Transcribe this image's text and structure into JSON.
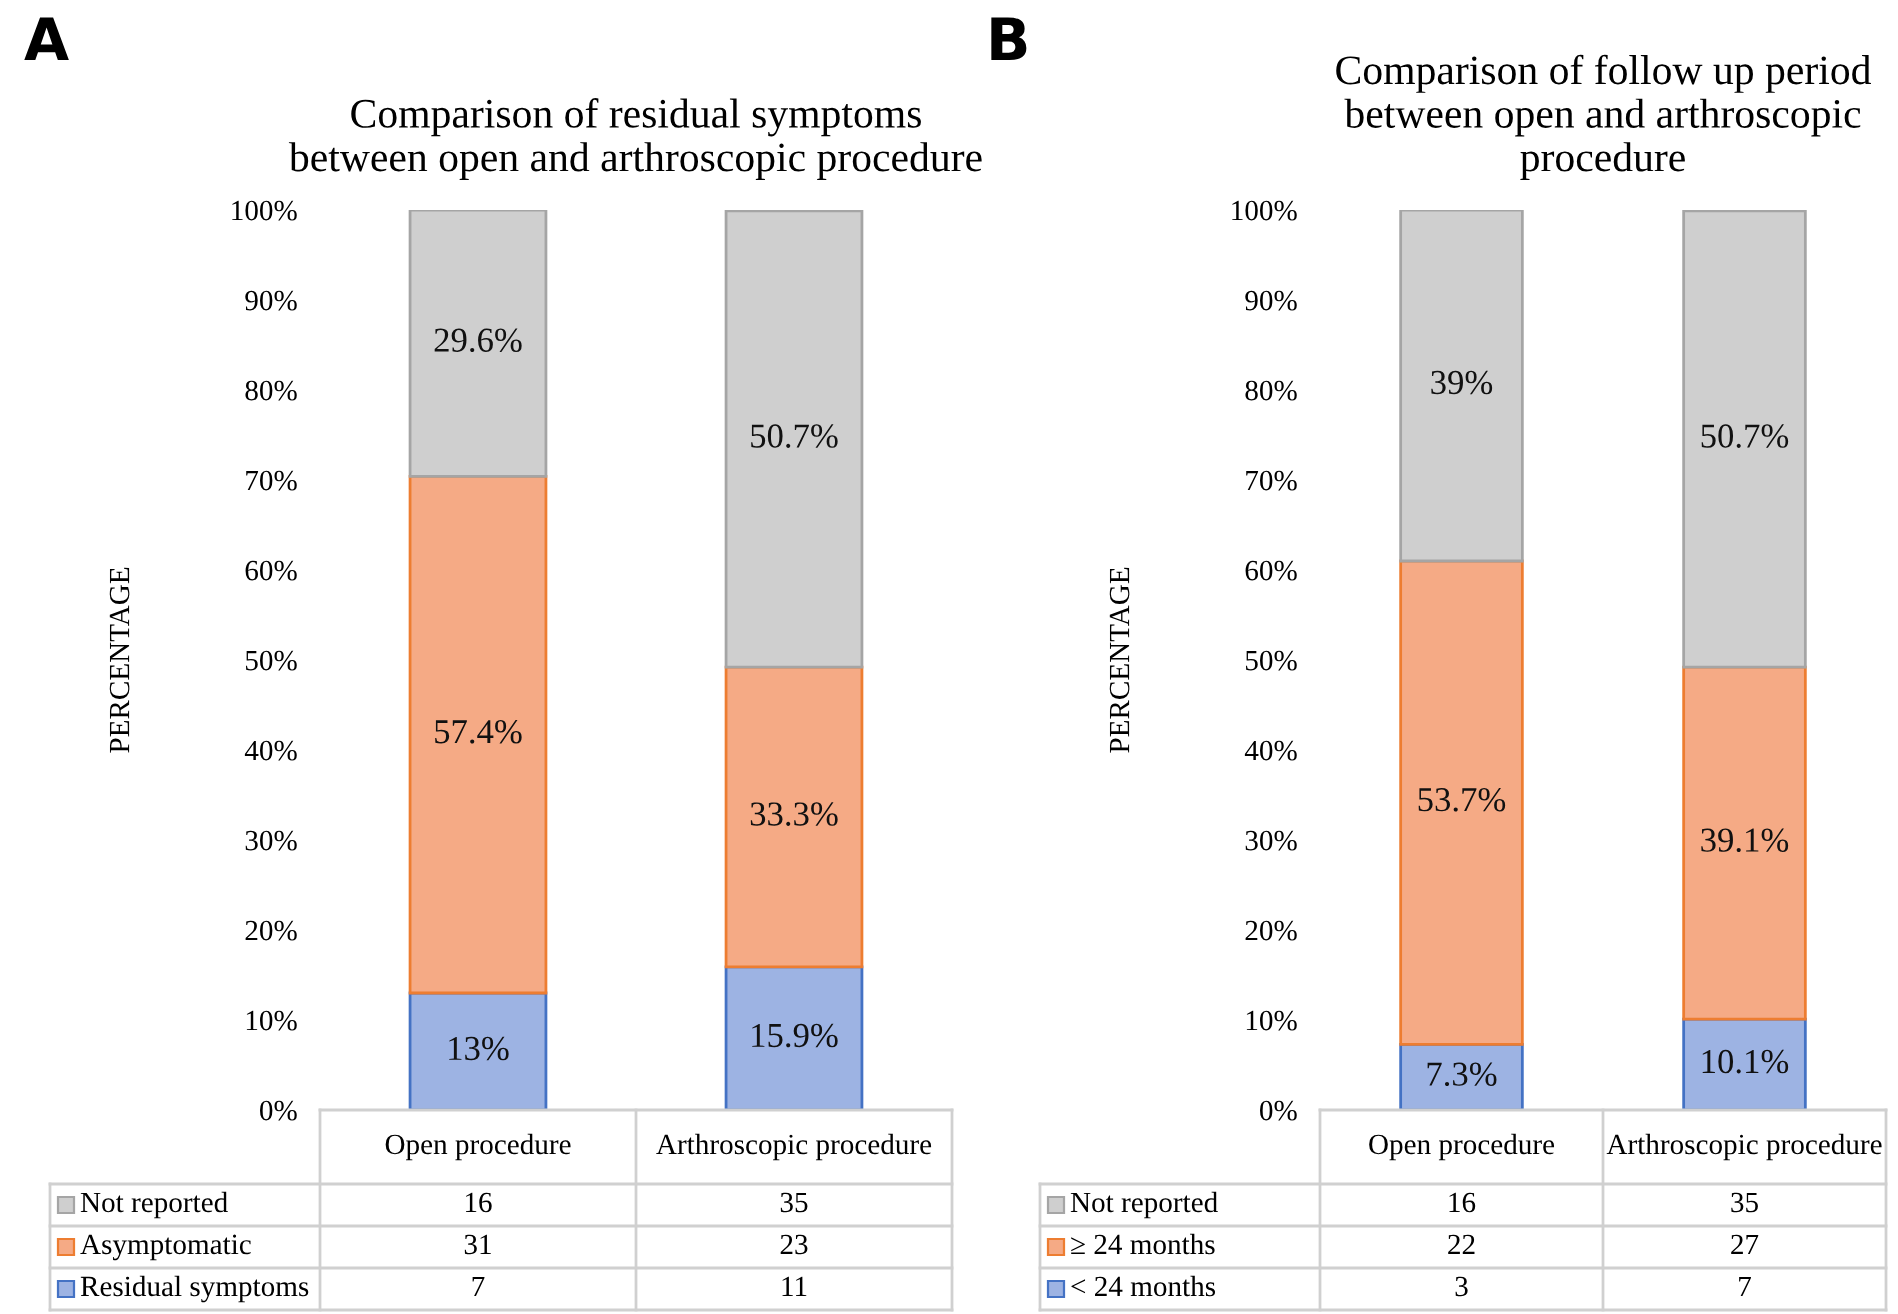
{
  "chart_data": [
    {
      "type": "bar",
      "stacked": true,
      "title": "Comparison of residual symptoms\nbetween open and arthroscopic procedure",
      "ylabel": "PERCENTAGE",
      "categories": [
        "Open procedure",
        "Arthroscopic procedure"
      ],
      "series": [
        {
          "name": "Residual symptoms",
          "color": "#9db3e3",
          "values": [
            13,
            15.9
          ],
          "value_labels": [
            "13%",
            "15.9%"
          ]
        },
        {
          "name": "Asymptomatic",
          "color": "#f5aa85",
          "values": [
            57.4,
            33.3
          ],
          "value_labels": [
            "57.4%",
            "33.3%"
          ]
        },
        {
          "name": "Not reported",
          "color": "#cfcfcf",
          "values": [
            29.6,
            50.7
          ],
          "value_labels": [
            "29.6%",
            "50.7%"
          ]
        }
      ],
      "ylim": [
        0,
        100
      ],
      "yticks": [
        {
          "value": 0,
          "label": "0%"
        },
        {
          "value": 10,
          "label": "10%"
        },
        {
          "value": 20,
          "label": "20%"
        },
        {
          "value": 30,
          "label": "30%"
        },
        {
          "value": 40,
          "label": "40%"
        },
        {
          "value": 50,
          "label": "50%"
        },
        {
          "value": 60,
          "label": "60%"
        },
        {
          "value": 70,
          "label": "70%"
        },
        {
          "value": 80,
          "label": "80%"
        },
        {
          "value": 90,
          "label": "90%"
        },
        {
          "value": 100,
          "label": "100%"
        }
      ],
      "grid": false,
      "legend": "bottom",
      "annotations": [
        "A",
        "16",
        "35",
        "31",
        "23",
        "7",
        "11"
      ]
    },
    {
      "type": "bar",
      "stacked": true,
      "title": "Comparison of follow up period\nbetween open and arthroscopic\nprocedure",
      "ylabel": "PERCENTAGE",
      "categories": [
        "Open procedure",
        "Arthroscopic procedure"
      ],
      "series": [
        {
          "name": "< 24 months",
          "color": "#9db3e3",
          "values": [
            7.3,
            10.1
          ],
          "value_labels": [
            "7.3%",
            "10.1%"
          ]
        },
        {
          "name": "≥ 24 months",
          "color": "#f5aa85",
          "values": [
            53.7,
            39.1
          ],
          "value_labels": [
            "53.7%",
            "39.1%"
          ]
        },
        {
          "name": "Not reported",
          "color": "#cfcfcf",
          "values": [
            39,
            50.7
          ],
          "value_labels": [
            "39%",
            "50.7%"
          ]
        }
      ],
      "ylim": [
        0,
        100
      ],
      "yticks": [
        {
          "value": 0,
          "label": "0%"
        },
        {
          "value": 10,
          "label": "10%"
        },
        {
          "value": 20,
          "label": "20%"
        },
        {
          "value": 30,
          "label": "30%"
        },
        {
          "value": 40,
          "label": "40%"
        },
        {
          "value": 50,
          "label": "50%"
        },
        {
          "value": 60,
          "label": "60%"
        },
        {
          "value": 70,
          "label": "70%"
        },
        {
          "value": 80,
          "label": "80%"
        },
        {
          "value": 90,
          "label": "90%"
        },
        {
          "value": 100,
          "label": "100%"
        }
      ],
      "grid": false,
      "legend": "bottom",
      "annotations": [
        "B",
        "16",
        "35",
        "22",
        "27",
        "3",
        "7"
      ]
    }
  ]
}
